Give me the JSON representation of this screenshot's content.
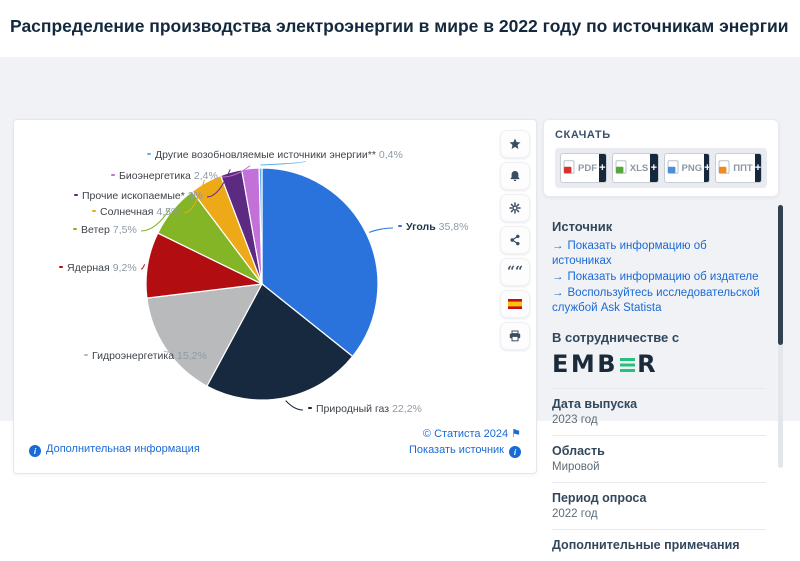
{
  "page": {
    "title": "Распределение производства электроэнергии в мире в 2022 году по источникам энергии"
  },
  "chart_data": {
    "type": "pie",
    "title": "Распределение производства электроэнергии в мире в 2022 году по источникам энергии",
    "unit": "%",
    "start_angle_deg": 0,
    "direction": "clockwise",
    "slices": [
      {
        "label": "Уголь",
        "value": 35.8,
        "display": "35,8%",
        "color": "#2a73dc",
        "emphasis": true
      },
      {
        "label": "Природный газ",
        "value": 22.2,
        "display": "22,2%",
        "color": "#16293e"
      },
      {
        "label": "Гидроэнергетика",
        "value": 15.2,
        "display": "15,2%",
        "color": "#b9babc"
      },
      {
        "label": "Ядерная",
        "value": 9.2,
        "display": "9,2%",
        "color": "#b20e11"
      },
      {
        "label": "Ветер",
        "value": 7.5,
        "display": "7,5%",
        "color": "#84b527"
      },
      {
        "label": "Солнечная",
        "value": 4.5,
        "display": "4,5%",
        "color": "#eda918"
      },
      {
        "label": "Прочие ископаемые*",
        "value": 3.0,
        "display": "3%",
        "color": "#5c2a80"
      },
      {
        "label": "Биоэнергетика",
        "value": 2.4,
        "display": "2,4%",
        "color": "#c271d8"
      },
      {
        "label": "Другие возобновляемые источники энергии**",
        "value": 0.4,
        "display": "0,4%",
        "color": "#5fb0ea"
      }
    ]
  },
  "toolbar": {
    "icons": [
      "star",
      "bell",
      "gear",
      "share",
      "quote",
      "flag-spain",
      "printer"
    ]
  },
  "download": {
    "heading": "СКАЧАТЬ",
    "plus": "+",
    "formats": [
      {
        "label": "PDF",
        "type": "pdf",
        "color": "#d6332e"
      },
      {
        "label": "XLS",
        "type": "xls",
        "color": "#57a639"
      },
      {
        "label": "PNG",
        "type": "png",
        "color": "#4a90d9"
      },
      {
        "label": "ППТ",
        "type": "ppt",
        "color": "#f08a24"
      }
    ]
  },
  "source": {
    "heading": "Источник",
    "links": [
      "Показать информацию об источниках",
      "Показать информацию об издателе",
      "Воспользуйтесь исследовательской службой Ask Statista"
    ],
    "partner_heading": "В сотрудничестве с",
    "partner_name": "EMBER"
  },
  "meta": [
    {
      "label": "Дата выпуска",
      "value": "2023 год"
    },
    {
      "label": "Область",
      "value": "Мировой"
    },
    {
      "label": "Период опроса",
      "value": "2022 год"
    },
    {
      "label": "Дополнительные примечания",
      "value": ""
    }
  ],
  "footer": {
    "more_info": "Дополнительная информация",
    "copyright": "© Статиста 2024",
    "show_source": "Показать источник"
  },
  "colors": {
    "accent_blue": "#1a6ad6",
    "heading": "#33475b",
    "title": "#14293d",
    "panel_bg": "#f1f2f6",
    "ember_green": "#25c17d"
  }
}
